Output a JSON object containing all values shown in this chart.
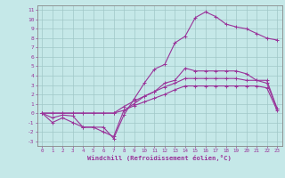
{
  "xlabel": "Windchill (Refroidissement éolien,°C)",
  "background_color": "#c5e8e8",
  "grid_color": "#a0c8c8",
  "line_color": "#993399",
  "xlim": [
    -0.5,
    23.5
  ],
  "ylim": [
    -3.5,
    11.5
  ],
  "xticks": [
    0,
    1,
    2,
    3,
    4,
    5,
    6,
    7,
    8,
    9,
    10,
    11,
    12,
    13,
    14,
    15,
    16,
    17,
    18,
    19,
    20,
    21,
    22,
    23
  ],
  "yticks": [
    -3,
    -2,
    -1,
    0,
    1,
    2,
    3,
    4,
    5,
    6,
    7,
    8,
    9,
    10,
    11
  ],
  "curves": [
    [
      0,
      -1.0,
      -0.5,
      -1.0,
      -1.5,
      -1.5,
      -1.5,
      -2.7,
      -0.2,
      1.5,
      3.2,
      4.7,
      5.2,
      7.5,
      8.2,
      10.2,
      10.8,
      10.3,
      9.5,
      9.2,
      9.0,
      8.5,
      8.0,
      7.8
    ],
    [
      0,
      -0.5,
      -0.2,
      -0.3,
      -1.5,
      -1.5,
      -2.0,
      -2.5,
      0.3,
      1.0,
      1.8,
      2.3,
      3.2,
      3.5,
      4.8,
      4.5,
      4.5,
      4.5,
      4.5,
      4.5,
      4.2,
      3.5,
      3.5,
      0.5
    ],
    [
      0,
      0.0,
      0.0,
      0.0,
      0.0,
      0.0,
      0.0,
      0.0,
      0.7,
      1.3,
      1.8,
      2.3,
      2.8,
      3.2,
      3.7,
      3.7,
      3.7,
      3.7,
      3.7,
      3.7,
      3.5,
      3.5,
      3.2,
      0.5
    ],
    [
      0,
      0.0,
      0.0,
      0.0,
      0.0,
      0.0,
      0.0,
      0.0,
      0.3,
      0.8,
      1.2,
      1.6,
      2.0,
      2.5,
      2.9,
      2.9,
      2.9,
      2.9,
      2.9,
      2.9,
      2.9,
      2.9,
      2.7,
      0.3
    ]
  ]
}
